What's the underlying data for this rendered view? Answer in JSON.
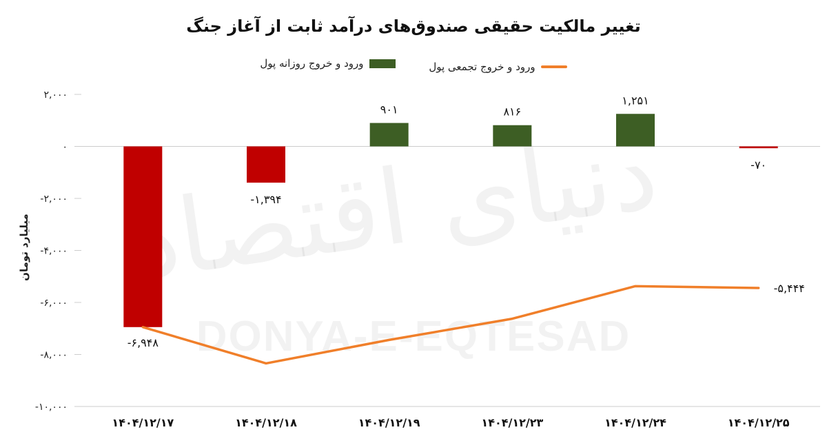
{
  "chart_data": {
    "type": "bar",
    "title": "تغییر مالکیت حقیقی صندوق‌های درآمد ثابت از آغاز جنگ",
    "ylabel": "میلیارد تومان",
    "xlabel": "",
    "categories": [
      "۱۴۰۴/۱۲/۱۷",
      "۱۴۰۴/۱۲/۱۸",
      "۱۴۰۴/۱۲/۱۹",
      "۱۴۰۴/۱۲/۲۳",
      "۱۴۰۴/۱۲/۲۴",
      "۱۴۰۴/۱۲/۲۵"
    ],
    "ylim": [
      -10000,
      2000
    ],
    "yticks": [
      2000,
      0,
      -2000,
      -4000,
      -6000,
      -8000,
      -10000
    ],
    "ytick_labels": [
      "۲,۰۰۰",
      "۰",
      "-۲,۰۰۰",
      "-۴,۰۰۰",
      "-۶,۰۰۰",
      "-۸,۰۰۰",
      "-۱۰,۰۰۰"
    ],
    "grid": false,
    "legend_position": "top",
    "series": [
      {
        "name": "ورود و خروج روزانه پول",
        "type": "bar",
        "values": [
          -6948,
          -1394,
          901,
          816,
          1251,
          -70
        ],
        "labels": [
          "-۶,۹۴۸",
          "-۱,۳۹۴",
          "۹۰۱",
          "۸۱۶",
          "۱,۲۵۱",
          "-۷۰"
        ]
      },
      {
        "name": "ورود و خروج تجمعی پول",
        "type": "line",
        "values": [
          -6948,
          -8342,
          -7441,
          -6625,
          -5374,
          -5444
        ],
        "labels": [
          "",
          "",
          "",
          "",
          "",
          "-۵,۴۴۴"
        ]
      }
    ]
  },
  "colors": {
    "positive_bar": "#3d5e24",
    "negative_bar": "#c00000",
    "cumulative_line": "#f07f2a",
    "axis": "#cccccc"
  },
  "watermark": {
    "text_fa": "دنیای اقتصاد",
    "text_en": "DONYA-E-EQTESAD"
  }
}
